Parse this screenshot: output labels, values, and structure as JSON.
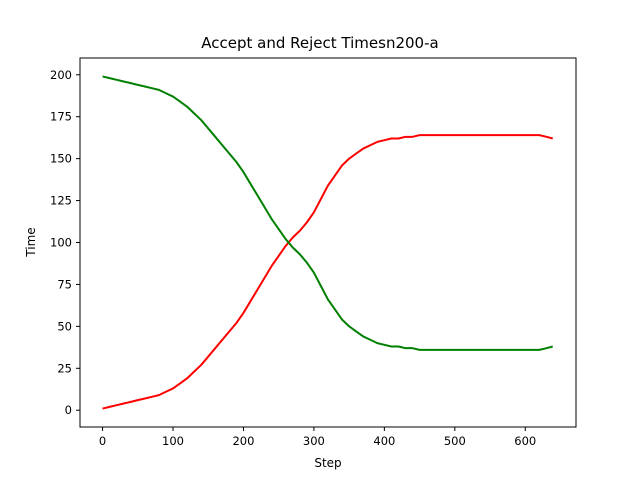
{
  "chart_data": {
    "type": "line",
    "title": "Accept and Reject Timesn200-a",
    "xlabel": "Step",
    "ylabel": "Time",
    "xlim": [
      -32,
      672
    ],
    "ylim": [
      -10,
      210
    ],
    "x_ticks": [
      0,
      100,
      200,
      300,
      400,
      500,
      600
    ],
    "y_ticks": [
      0,
      25,
      50,
      75,
      100,
      125,
      150,
      175,
      200
    ],
    "x_tick_labels": [
      "0",
      "100",
      "200",
      "300",
      "400",
      "500",
      "600"
    ],
    "y_tick_labels": [
      "0",
      "25",
      "50",
      "75",
      "100",
      "125",
      "150",
      "175",
      "200"
    ],
    "grid": false,
    "legend": "none",
    "series": [
      {
        "color": "#ff0000",
        "x": [
          0,
          10,
          20,
          30,
          40,
          50,
          60,
          70,
          80,
          90,
          100,
          110,
          120,
          130,
          140,
          150,
          160,
          170,
          180,
          190,
          200,
          210,
          220,
          230,
          240,
          250,
          260,
          270,
          280,
          290,
          300,
          310,
          320,
          330,
          340,
          350,
          360,
          370,
          380,
          390,
          400,
          410,
          420,
          430,
          440,
          450,
          460,
          470,
          480,
          490,
          500,
          510,
          520,
          530,
          540,
          550,
          560,
          570,
          580,
          590,
          600,
          610,
          620,
          630,
          639
        ],
        "y": [
          1,
          2,
          3,
          4,
          5,
          6,
          7,
          8,
          9,
          11,
          13,
          16,
          19,
          23,
          27,
          32,
          37,
          42,
          47,
          52,
          58,
          65,
          72,
          79,
          86,
          92,
          98,
          103,
          107,
          112,
          118,
          126,
          134,
          140,
          146,
          150,
          153,
          156,
          158,
          160,
          161,
          162,
          162,
          163,
          163,
          164,
          164,
          164,
          164,
          164,
          164,
          164,
          164,
          164,
          164,
          164,
          164,
          164,
          164,
          164,
          164,
          164,
          164,
          163,
          162
        ]
      },
      {
        "color": "#008000",
        "x": [
          0,
          10,
          20,
          30,
          40,
          50,
          60,
          70,
          80,
          90,
          100,
          110,
          120,
          130,
          140,
          150,
          160,
          170,
          180,
          190,
          200,
          210,
          220,
          230,
          240,
          250,
          260,
          270,
          280,
          290,
          300,
          310,
          320,
          330,
          340,
          350,
          360,
          370,
          380,
          390,
          400,
          410,
          420,
          430,
          440,
          450,
          460,
          470,
          480,
          490,
          500,
          510,
          520,
          530,
          540,
          550,
          560,
          570,
          580,
          590,
          600,
          610,
          620,
          630,
          639
        ],
        "y": [
          199,
          198,
          197,
          196,
          195,
          194,
          193,
          192,
          191,
          189,
          187,
          184,
          181,
          177,
          173,
          168,
          163,
          158,
          153,
          148,
          142,
          135,
          128,
          121,
          114,
          108,
          102,
          97,
          93,
          88,
          82,
          74,
          66,
          60,
          54,
          50,
          47,
          44,
          42,
          40,
          39,
          38,
          38,
          37,
          37,
          36,
          36,
          36,
          36,
          36,
          36,
          36,
          36,
          36,
          36,
          36,
          36,
          36,
          36,
          36,
          36,
          36,
          36,
          37,
          38
        ]
      }
    ]
  }
}
